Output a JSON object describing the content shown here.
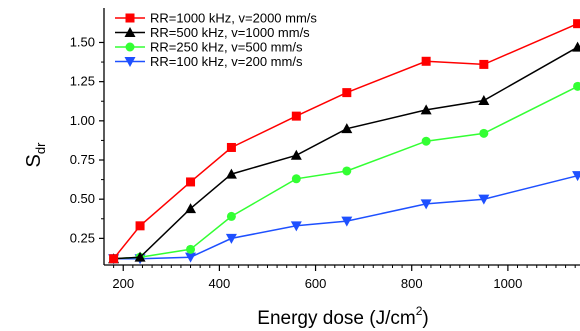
{
  "chart_data": {
    "type": "line",
    "xlabel": "Energy dose (J/cm",
    "xlabel_sup": "2",
    "xlabel_close": ")",
    "ylabel": "S",
    "ylabel_sub": "dr",
    "xlim": [
      160,
      1150
    ],
    "ylim": [
      0.08,
      1.72
    ],
    "xticks": [
      200,
      400,
      600,
      800,
      1000
    ],
    "xtick_labels": [
      "200",
      "400",
      "600",
      "800",
      "1000"
    ],
    "yticks": [
      0.25,
      0.5,
      0.75,
      1.0,
      1.25,
      1.5
    ],
    "ytick_labels": [
      "0.25",
      "0.50",
      "0.75",
      "1.00",
      "1.25",
      "1.50"
    ],
    "grid": false,
    "legend_position": "top-left",
    "series": [
      {
        "name": "RR=1000 kHz, v=2000 mm/s",
        "color": "#ff0000",
        "marker": "square",
        "points": [
          [
            180,
            0.12
          ],
          [
            235,
            0.33
          ],
          [
            340,
            0.61
          ],
          [
            425,
            0.83
          ],
          [
            560,
            1.03
          ],
          [
            665,
            1.18
          ],
          [
            830,
            1.38
          ],
          [
            950,
            1.36
          ],
          [
            1145,
            1.62
          ]
        ]
      },
      {
        "name": "RR=500 kHz, v=1000 mm/s",
        "color": "#000000",
        "marker": "triangle-up",
        "points": [
          [
            180,
            0.12
          ],
          [
            235,
            0.13
          ],
          [
            340,
            0.44
          ],
          [
            425,
            0.66
          ],
          [
            560,
            0.78
          ],
          [
            665,
            0.95
          ],
          [
            830,
            1.07
          ],
          [
            950,
            1.13
          ],
          [
            1145,
            1.47
          ]
        ]
      },
      {
        "name": "RR=250 kHz, v=500 mm/s",
        "color": "#33ff33",
        "marker": "circle",
        "points": [
          [
            180,
            0.12
          ],
          [
            235,
            0.13
          ],
          [
            340,
            0.18
          ],
          [
            425,
            0.39
          ],
          [
            560,
            0.63
          ],
          [
            665,
            0.68
          ],
          [
            830,
            0.87
          ],
          [
            950,
            0.92
          ],
          [
            1145,
            1.22
          ]
        ]
      },
      {
        "name": "RR=100 kHz, v=200 mm/s",
        "color": "#1e50ff",
        "marker": "triangle-down",
        "points": [
          [
            180,
            0.12
          ],
          [
            235,
            0.12
          ],
          [
            340,
            0.13
          ],
          [
            425,
            0.25
          ],
          [
            560,
            0.33
          ],
          [
            665,
            0.36
          ],
          [
            830,
            0.47
          ],
          [
            950,
            0.5
          ],
          [
            1145,
            0.65
          ]
        ]
      }
    ]
  }
}
